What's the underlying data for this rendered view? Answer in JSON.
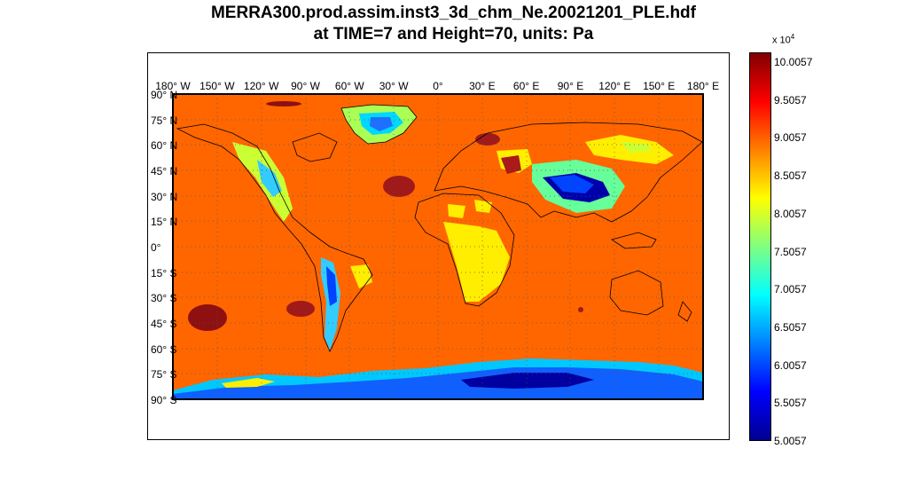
{
  "title": {
    "line1": "MERRA300.prod.assim.inst3_3d_chm_Ne.20021201_PLE.hdf",
    "line2": "at TIME=7 and Height=70, units: Pa"
  },
  "lon_labels": [
    "180° W",
    "150° W",
    "120° W",
    "90° W",
    "60° W",
    "30° W",
    "0°",
    "30° E",
    "60° E",
    "90° E",
    "120° E",
    "150° E",
    "180° E"
  ],
  "lat_labels": [
    "90° N",
    "75° N",
    "60° N",
    "45° N",
    "30° N",
    "15° N",
    "0°",
    "15° S",
    "30° S",
    "45° S",
    "60° S",
    "75° S",
    "90° S"
  ],
  "colorbar": {
    "exponent_prefix": "x 10",
    "exponent": "4",
    "ticks": [
      "10.0057",
      "9.5057",
      "9.0057",
      "8.5057",
      "8.0057",
      "7.5057",
      "7.0057",
      "6.5057",
      "6.0057",
      "5.5057",
      "5.0057"
    ],
    "min": 5.0057,
    "max": 10.0057,
    "colors": [
      "#00008f",
      "#0000ff",
      "#0080ff",
      "#00ffff",
      "#80ff80",
      "#ffff00",
      "#ff8000",
      "#ff0000",
      "#800000"
    ]
  },
  "map": {
    "background_color": "#ff6600",
    "projection": "equirectangular",
    "grid": "dotted"
  }
}
